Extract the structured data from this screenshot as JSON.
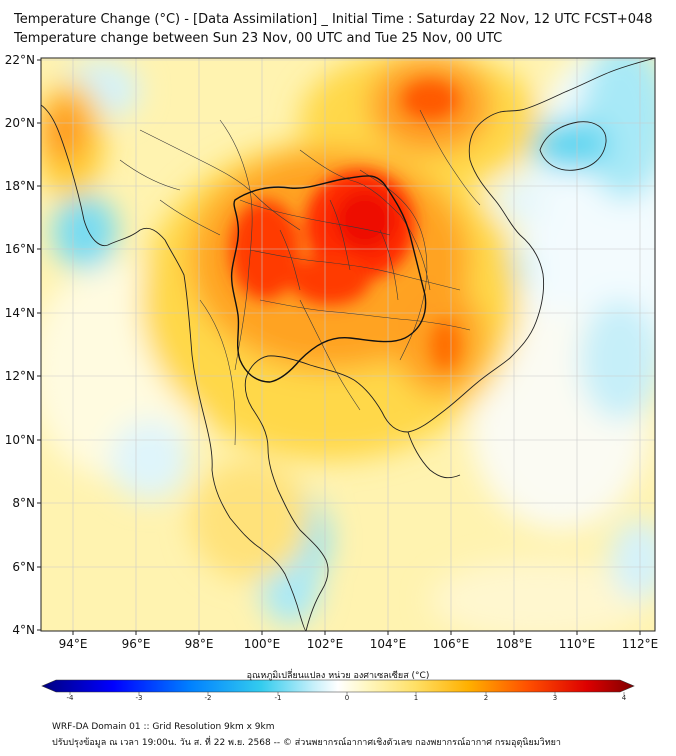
{
  "header": {
    "title_line1": "Temperature Change (°C) - [Data Assimilation] _ Initial Time : Saturday 22 Nov, 12 UTC FCST+048",
    "title_line2": "Temperature change between Sun 23 Nov, 00 UTC and Tue 25 Nov, 00 UTC"
  },
  "map": {
    "lat_labels": [
      "22°N",
      "20°N",
      "18°N",
      "16°N",
      "14°N",
      "12°N",
      "10°N",
      "8°N",
      "6°N",
      "4°N"
    ],
    "lon_labels": [
      "94°E",
      "96°E",
      "98°E",
      "100°E",
      "102°E",
      "104°E",
      "106°E",
      "108°E",
      "110°E",
      "112°E"
    ],
    "lat_values": [
      22,
      20,
      18,
      16,
      14,
      12,
      10,
      8,
      6,
      4
    ],
    "lon_values": [
      94,
      96,
      98,
      100,
      102,
      104,
      106,
      108,
      110,
      112
    ],
    "extent": {
      "lon_min": 93,
      "lon_max": 112.5,
      "lat_min": 4,
      "lat_max": 22.2
    }
  },
  "colorbar": {
    "title": "อุณหภูมิเปลี่ยนแปลง หน่วย องศาเซลเซียส (°C)",
    "tick_labels": [
      "-4",
      "-3",
      "-2",
      "-1",
      "0",
      "1",
      "2",
      "3",
      "4"
    ],
    "min": -4,
    "max": 4
  },
  "footer": {
    "line1": "WRF-DA Domain 01 :: Grid Resolution 9km x 9km",
    "line2": "ปรับปรุงข้อมูล ณ เวลา 19:00น. วัน ส. ที่ 22 พ.ย. 2568 -- © ส่วนพยากรณ์อากาศเชิงตัวเลข กองพยากรณ์อากาศ กรมอุตุนิยมวิทยา"
  },
  "colors": {
    "warm_dark": "#e60000",
    "warm_orange": "#ff7f00",
    "warm_yellow": "#ffd24a",
    "pale_yellow": "#fff6b5",
    "cool_cyan": "#63d9f2",
    "pale_cyan": "#d6f3fa"
  }
}
